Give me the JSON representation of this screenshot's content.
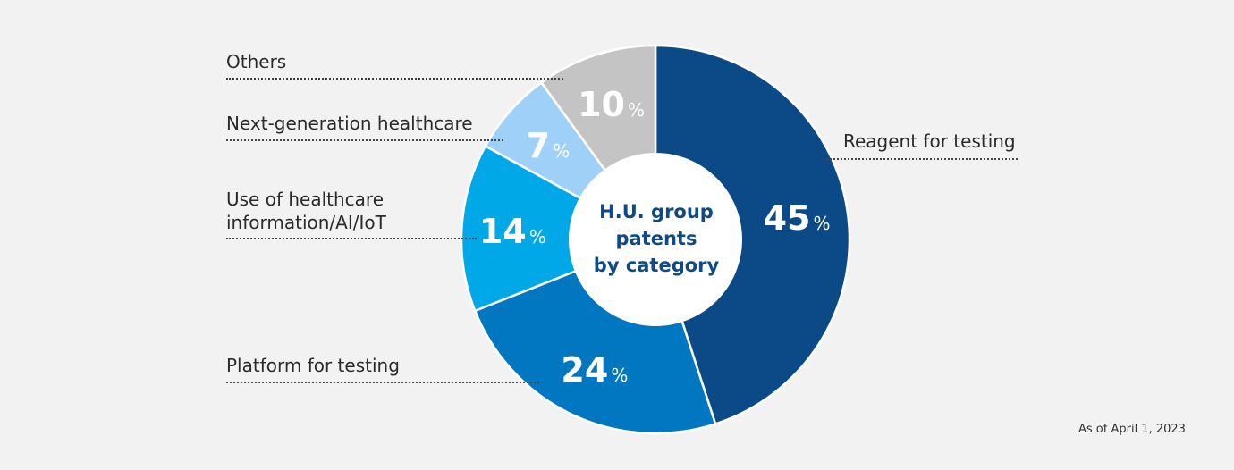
{
  "chart_data": {
    "type": "pie",
    "title_lines": [
      "H.U. group",
      "patents",
      "by category"
    ],
    "slices": [
      {
        "label": "Reagent for testing",
        "value": 45,
        "color": "#0b4a87"
      },
      {
        "label": "Platform for testing",
        "value": 24,
        "color": "#0077c0"
      },
      {
        "label": "Use of healthcare information/AI/IoT",
        "label_lines": [
          "Use of healthcare",
          "information/AI/IoT"
        ],
        "value": 14,
        "color": "#00a8e8"
      },
      {
        "label": "Next-generation healthcare",
        "value": 7,
        "color": "#9fd0f8"
      },
      {
        "label": "Others",
        "value": 10,
        "color": "#c4c4c4"
      }
    ],
    "unit": "%",
    "note": "As of April 1, 2023"
  }
}
